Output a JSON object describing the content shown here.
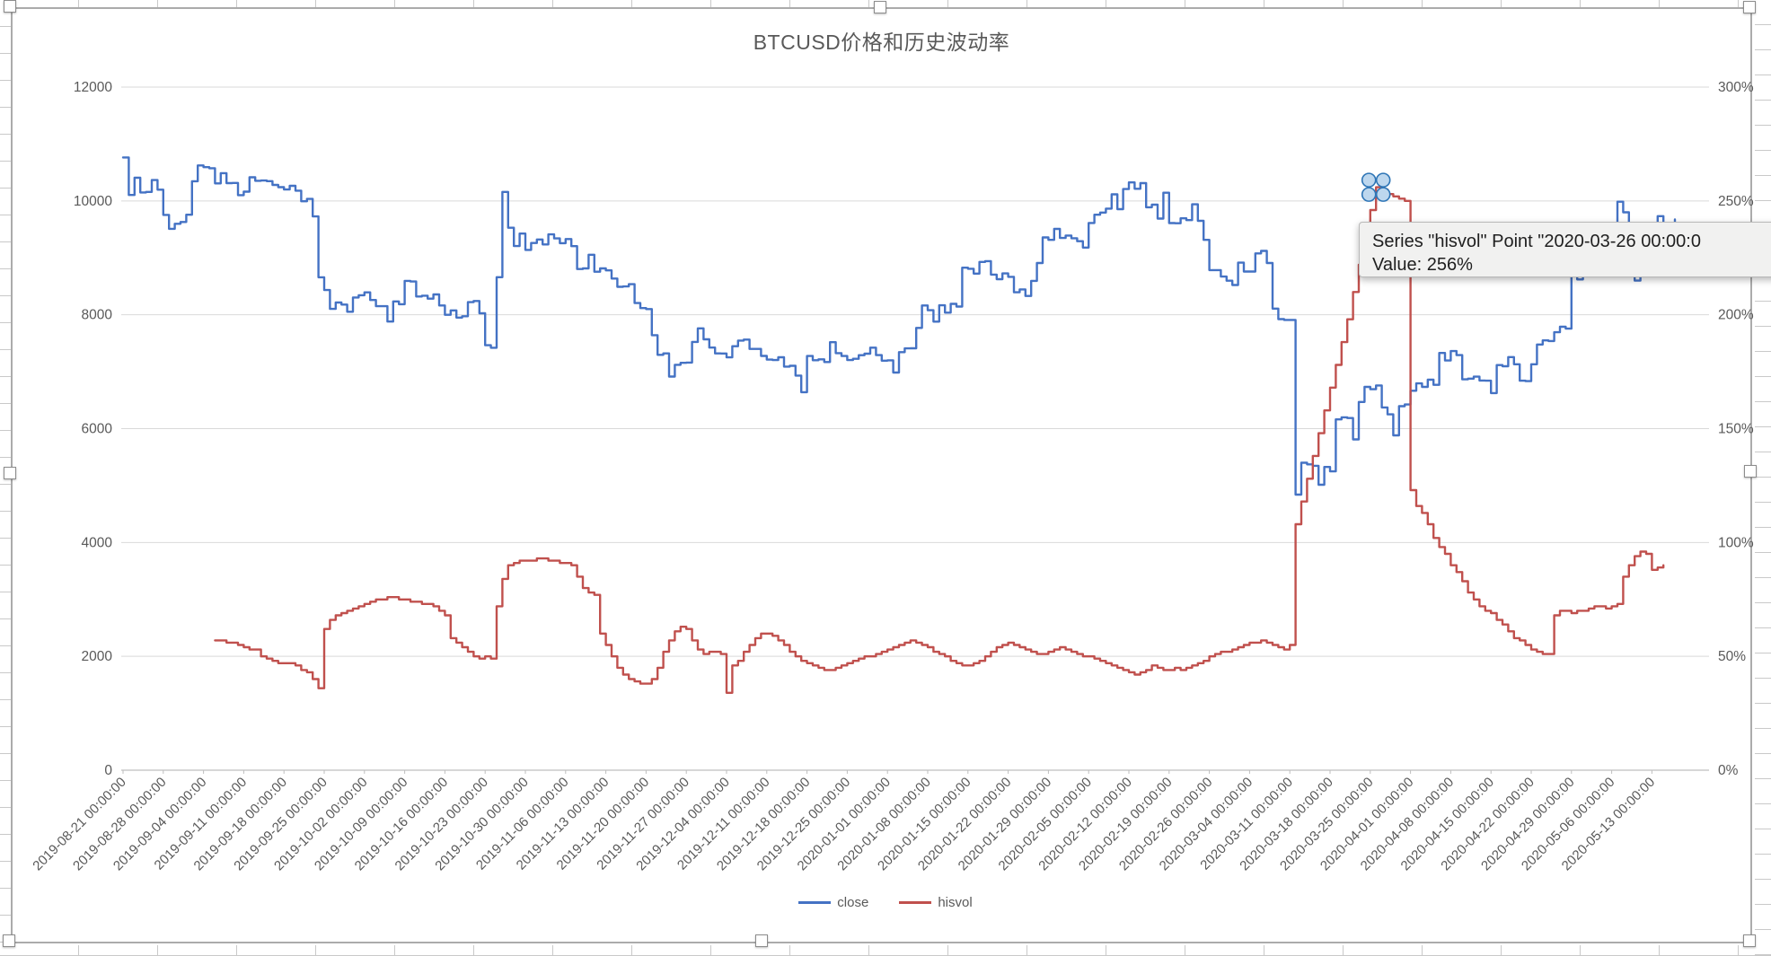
{
  "chart_data": {
    "type": "line",
    "title": "BTCUSD价格和历史波动率",
    "legend_position": "bottom",
    "grid": "horizontal",
    "x_axis": {
      "start_date": "2019-08-21",
      "tick_interval_days": 7,
      "labels": [
        "2019-08-21 00:00:00",
        "2019-08-28 00:00:00",
        "2019-09-04 00:00:00",
        "2019-09-11 00:00:00",
        "2019-09-18 00:00:00",
        "2019-09-25 00:00:00",
        "2019-10-02 00:00:00",
        "2019-10-09 00:00:00",
        "2019-10-16 00:00:00",
        "2019-10-23 00:00:00",
        "2019-10-30 00:00:00",
        "2019-11-06 00:00:00",
        "2019-11-13 00:00:00",
        "2019-11-20 00:00:00",
        "2019-11-27 00:00:00",
        "2019-12-04 00:00:00",
        "2019-12-11 00:00:00",
        "2019-12-18 00:00:00",
        "2019-12-25 00:00:00",
        "2020-01-01 00:00:00",
        "2020-01-08 00:00:00",
        "2020-01-15 00:00:00",
        "2020-01-22 00:00:00",
        "2020-01-29 00:00:00",
        "2020-02-05 00:00:00",
        "2020-02-12 00:00:00",
        "2020-02-19 00:00:00",
        "2020-02-26 00:00:00",
        "2020-03-04 00:00:00",
        "2020-03-11 00:00:00",
        "2020-03-18 00:00:00",
        "2020-03-25 00:00:00",
        "2020-04-01 00:00:00",
        "2020-04-08 00:00:00",
        "2020-04-15 00:00:00",
        "2020-04-22 00:00:00",
        "2020-04-29 00:00:00",
        "2020-05-06 00:00:00",
        "2020-05-13 00:00:00"
      ]
    },
    "y_axis_left": {
      "min": 0,
      "max": 12000,
      "tick_labels": [
        "0",
        "2000",
        "4000",
        "6000",
        "8000",
        "10000",
        "12000"
      ]
    },
    "y_axis_right": {
      "min_pct": 0,
      "max_pct": 300,
      "tick_labels": [
        "0%",
        "50%",
        "100%",
        "150%",
        "200%",
        "250%",
        "300%"
      ]
    },
    "series": [
      {
        "name": "close",
        "axis": "left",
        "color": "#4472C4",
        "start_day": 0,
        "values": [
          10764,
          10105,
          10408,
          10148,
          10158,
          10366,
          10198,
          9754,
          9510,
          9598,
          9630,
          9757,
          10346,
          10623,
          10594,
          10575,
          10308,
          10488,
          10312,
          10316,
          10102,
          10163,
          10415,
          10354,
          10358,
          10347,
          10281,
          10241,
          10200,
          10266,
          10181,
          9994,
          10036,
          9727,
          8658,
          8435,
          8103,
          8216,
          8180,
          8053,
          8304,
          8343,
          8393,
          8259,
          8151,
          8151,
          7881,
          8235,
          8186,
          8595,
          8585,
          8321,
          8336,
          8284,
          8358,
          8163,
          8000,
          8077,
          7950,
          7974,
          8222,
          8243,
          8026,
          7465,
          7421,
          8660,
          10158,
          9529,
          9207,
          9427,
          9140,
          9261,
          9323,
          9235,
          9412,
          9342,
          9258,
          9330,
          9206,
          8804,
          8814,
          9055,
          8757,
          8815,
          8780,
          8637,
          8491,
          8497,
          8537,
          8206,
          8117,
          8100,
          7642,
          7296,
          7322,
          6914,
          7121,
          7156,
          7160,
          7524,
          7761,
          7569,
          7424,
          7321,
          7320,
          7252,
          7448,
          7547,
          7564,
          7400,
          7400,
          7278,
          7212,
          7204,
          7253,
          7090,
          7104,
          6932,
          6640,
          7276,
          7202,
          7218,
          7170,
          7518,
          7326,
          7275,
          7205,
          7227,
          7290,
          7317,
          7422,
          7292,
          7193,
          7200,
          6985,
          7344,
          7410,
          7411,
          7769,
          8164,
          8080,
          7879,
          8166,
          8037,
          8192,
          8144,
          8827,
          8808,
          8723,
          8929,
          8942,
          8706,
          8626,
          8727,
          8667,
          8396,
          8445,
          8331,
          8596,
          8909,
          9358,
          9316,
          9508,
          9350,
          9392,
          9344,
          9293,
          9180,
          9613,
          9758,
          9795,
          9865,
          10116,
          9856,
          10208,
          10326,
          10214,
          10312,
          9889,
          9934,
          9690,
          10144,
          9611,
          9608,
          9695,
          9663,
          9941,
          9650,
          9316,
          8785,
          8784,
          8672,
          8599,
          8523,
          8915,
          8760,
          8760,
          9078,
          9122,
          8909,
          8108,
          7923,
          7909,
          7910,
          4841,
          5400,
          5373,
          5347,
          5014,
          5327,
          5250,
          6162,
          6198,
          6186,
          5811,
          6469,
          6734,
          6692,
          6758,
          6372,
          6251,
          5881,
          6394,
          6424,
          6666,
          6794,
          6733,
          6859,
          6770,
          7330,
          7197,
          7362,
          7292,
          6865,
          6878,
          6913,
          6845,
          6842,
          6624,
          7116,
          7096,
          7257,
          7131,
          6842,
          6834,
          7130,
          7477,
          7550,
          7539,
          7693,
          7789,
          7756,
          8778,
          8620,
          8829,
          8972,
          8894,
          8871,
          9021,
          9151,
          9987,
          9800,
          9539,
          8601,
          8804,
          8809,
          9270,
          9733,
          9328,
          9386,
          9674
        ]
      },
      {
        "name": "hisvol",
        "axis": "right",
        "unit": "%",
        "color": "#C0504D",
        "start_day": 16,
        "values": [
          57,
          57,
          56,
          56,
          55,
          54,
          53,
          53,
          50,
          49,
          48,
          47,
          47,
          47,
          46,
          44,
          43,
          40,
          36,
          62,
          66,
          68,
          69,
          70,
          71,
          72,
          73,
          74,
          75,
          75,
          76,
          76,
          75,
          75,
          74,
          74,
          73,
          73,
          72,
          70,
          68,
          58,
          56,
          54,
          52,
          50,
          49,
          50,
          49,
          72,
          84,
          90,
          91,
          92,
          92,
          92,
          93,
          93,
          92,
          92,
          91,
          91,
          90,
          85,
          80,
          78,
          77,
          60,
          55,
          50,
          45,
          42,
          40,
          39,
          38,
          38,
          40,
          45,
          52,
          57,
          61,
          63,
          62,
          57,
          53,
          51,
          52,
          52,
          51,
          34,
          46,
          48,
          52,
          55,
          58,
          60,
          60,
          59,
          57,
          55,
          52,
          50,
          48,
          47,
          46,
          45,
          44,
          44,
          45,
          46,
          47,
          48,
          49,
          50,
          50,
          51,
          52,
          53,
          54,
          55,
          56,
          57,
          56,
          55,
          54,
          52,
          51,
          50,
          48,
          47,
          46,
          46,
          47,
          48,
          50,
          52,
          54,
          55,
          56,
          55,
          54,
          53,
          52,
          51,
          51,
          52,
          53,
          54,
          53,
          52,
          51,
          50,
          50,
          49,
          48,
          47,
          46,
          45,
          44,
          43,
          42,
          43,
          44,
          46,
          45,
          44,
          44,
          45,
          44,
          45,
          46,
          47,
          48,
          50,
          51,
          52,
          52,
          53,
          54,
          55,
          56,
          56,
          57,
          56,
          55,
          54,
          53,
          55,
          108,
          118,
          128,
          138,
          148,
          158,
          168,
          178,
          188,
          198,
          210,
          222,
          234,
          246,
          256,
          255,
          253,
          252,
          251,
          250,
          123,
          116,
          113,
          108,
          102,
          98,
          95,
          90,
          87,
          83,
          78,
          75,
          72,
          70,
          69,
          66,
          64,
          61,
          58,
          57,
          55,
          53,
          52,
          51,
          51,
          68,
          70,
          70,
          69,
          70,
          70,
          71,
          72,
          72,
          71,
          72,
          73,
          85,
          90,
          94,
          96,
          95,
          88,
          89,
          90
        ]
      }
    ],
    "selected_point": {
      "series": "hisvol",
      "date": "2020-03-26 00:00:00",
      "day_index": 218,
      "value_pct": 256
    }
  },
  "legend": {
    "close_label": "close",
    "hisvol_label": "hisvol"
  },
  "tooltip": {
    "line1": "Series \"hisvol\" Point \"2020-03-26 00:00:0",
    "line2": "Value: 256%"
  },
  "colors": {
    "close_line": "#4472C4",
    "hisvol_line": "#C0504D",
    "gridline": "#D9D9D9",
    "axis_text": "#595959",
    "marker_fill": "#BDD7EE",
    "marker_stroke": "#2E75B6"
  }
}
